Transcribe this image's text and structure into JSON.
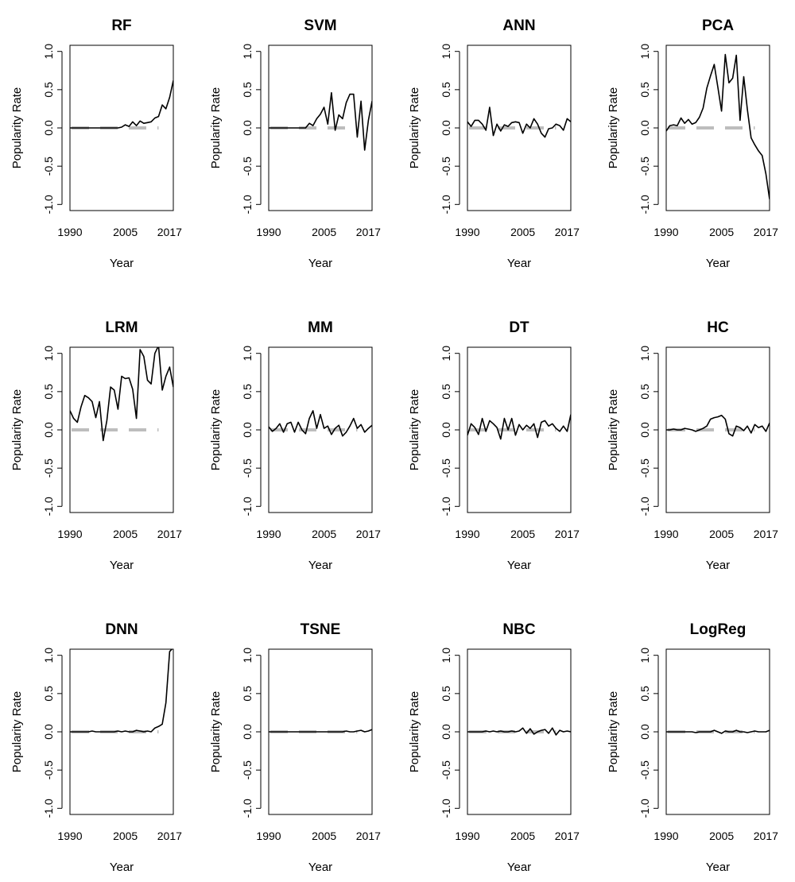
{
  "chart_data": [
    {
      "type": "line",
      "title": "RF",
      "xlabel": "Year",
      "ylabel": "Popularity Rate",
      "xlim": [
        1990,
        2018
      ],
      "ylim": [
        -1.0,
        1.0
      ],
      "x_ticks": [
        1990,
        2005,
        2017
      ],
      "y_ticks": [
        -1.0,
        -0.5,
        0.0,
        0.5,
        1.0
      ],
      "baseline": 0,
      "x": [
        1990,
        1991,
        1992,
        1993,
        1994,
        1995,
        1996,
        1997,
        1998,
        1999,
        2000,
        2001,
        2002,
        2003,
        2004,
        2005,
        2006,
        2007,
        2008,
        2009,
        2010,
        2011,
        2012,
        2013,
        2014,
        2015,
        2016,
        2017,
        2018
      ],
      "values": [
        0,
        0,
        0,
        0,
        0,
        0,
        0,
        0,
        0,
        0,
        0,
        0,
        0,
        0,
        0.01,
        0.04,
        0.02,
        0.08,
        0.03,
        0.09,
        0.06,
        0.07,
        0.08,
        0.13,
        0.15,
        0.3,
        0.25,
        0.4,
        0.62
      ]
    },
    {
      "type": "line",
      "title": "SVM",
      "xlabel": "Year",
      "ylabel": "Popularity Rate",
      "xlim": [
        1990,
        2018
      ],
      "ylim": [
        -1.0,
        1.0
      ],
      "x_ticks": [
        1990,
        2005,
        2017
      ],
      "y_ticks": [
        -1.0,
        -0.5,
        0.0,
        0.5,
        1.0
      ],
      "baseline": 0,
      "x": [
        1990,
        1991,
        1992,
        1993,
        1994,
        1995,
        1996,
        1997,
        1998,
        1999,
        2000,
        2001,
        2002,
        2003,
        2004,
        2005,
        2006,
        2007,
        2008,
        2009,
        2010,
        2011,
        2012,
        2013,
        2014,
        2015,
        2016,
        2017,
        2018
      ],
      "values": [
        0,
        0,
        0,
        0,
        0,
        0,
        0,
        0,
        0,
        0,
        0,
        0.06,
        0.03,
        0.12,
        0.18,
        0.27,
        0.05,
        0.46,
        -0.03,
        0.17,
        0.12,
        0.33,
        0.44,
        0.44,
        -0.12,
        0.35,
        -0.29,
        0.1,
        0.35
      ]
    },
    {
      "type": "line",
      "title": "ANN",
      "xlabel": "Year",
      "ylabel": "Popularity Rate",
      "xlim": [
        1990,
        2018
      ],
      "ylim": [
        -1.0,
        1.0
      ],
      "x_ticks": [
        1990,
        2005,
        2017
      ],
      "y_ticks": [
        -1.0,
        -0.5,
        0.0,
        0.5,
        1.0
      ],
      "baseline": 0,
      "x": [
        1990,
        1991,
        1992,
        1993,
        1994,
        1995,
        1996,
        1997,
        1998,
        1999,
        2000,
        2001,
        2002,
        2003,
        2004,
        2005,
        2006,
        2007,
        2008,
        2009,
        2010,
        2011,
        2012,
        2013,
        2014,
        2015,
        2016,
        2017,
        2018
      ],
      "values": [
        0.08,
        0.02,
        0.1,
        0.1,
        0.05,
        -0.03,
        0.27,
        -0.1,
        0.05,
        -0.04,
        0.04,
        0.02,
        0.07,
        0.08,
        0.07,
        -0.07,
        0.05,
        0,
        0.12,
        0.05,
        -0.07,
        -0.12,
        -0.01,
        0,
        0.05,
        0.03,
        -0.03,
        0.12,
        0.08
      ]
    },
    {
      "type": "line",
      "title": "PCA",
      "xlabel": "Year",
      "ylabel": "Popularity Rate",
      "xlim": [
        1990,
        2018
      ],
      "ylim": [
        -1.0,
        1.0
      ],
      "x_ticks": [
        1990,
        2005,
        2017
      ],
      "y_ticks": [
        -1.0,
        -0.5,
        0.0,
        0.5,
        1.0
      ],
      "baseline": 0,
      "x": [
        1990,
        1991,
        1992,
        1993,
        1994,
        1995,
        1996,
        1997,
        1998,
        1999,
        2000,
        2001,
        2002,
        2003,
        2004,
        2005,
        2006,
        2007,
        2008,
        2009,
        2010,
        2011,
        2012,
        2013,
        2014,
        2015,
        2016,
        2017,
        2018
      ],
      "values": [
        -0.04,
        0.03,
        0.04,
        0.03,
        0.13,
        0.06,
        0.11,
        0.05,
        0.07,
        0.14,
        0.26,
        0.52,
        0.68,
        0.83,
        0.53,
        0.22,
        0.96,
        0.59,
        0.65,
        0.95,
        0.1,
        0.67,
        0.24,
        -0.13,
        -0.22,
        -0.3,
        -0.36,
        -0.6,
        -0.93
      ]
    },
    {
      "type": "line",
      "title": "LRM",
      "xlabel": "Year",
      "ylabel": "Popularity Rate",
      "xlim": [
        1990,
        2018
      ],
      "ylim": [
        -1.0,
        1.0
      ],
      "x_ticks": [
        1990,
        2005,
        2017
      ],
      "y_ticks": [
        -1.0,
        -0.5,
        0.0,
        0.5,
        1.0
      ],
      "baseline": 0,
      "x": [
        1990,
        1991,
        1992,
        1993,
        1994,
        1995,
        1996,
        1997,
        1998,
        1999,
        2000,
        2001,
        2002,
        2003,
        2004,
        2005,
        2006,
        2007,
        2008,
        2009,
        2010,
        2011,
        2012,
        2013,
        2014,
        2015,
        2016,
        2017,
        2018
      ],
      "values": [
        0.25,
        0.15,
        0.1,
        0.3,
        0.45,
        0.42,
        0.37,
        0.16,
        0.37,
        -0.14,
        0.12,
        0.56,
        0.52,
        0.27,
        0.7,
        0.67,
        0.68,
        0.53,
        0.15,
        1.05,
        0.96,
        0.65,
        0.6,
        1.0,
        1.1,
        0.52,
        0.7,
        0.82,
        0.56
      ]
    },
    {
      "type": "line",
      "title": "MM",
      "xlabel": "Year",
      "ylabel": "Popularity Rate",
      "xlim": [
        1990,
        2018
      ],
      "ylim": [
        -1.0,
        1.0
      ],
      "x_ticks": [
        1990,
        2005,
        2017
      ],
      "y_ticks": [
        -1.0,
        -0.5,
        0.0,
        0.5,
        1.0
      ],
      "baseline": 0,
      "x": [
        1990,
        1991,
        1992,
        1993,
        1994,
        1995,
        1996,
        1997,
        1998,
        1999,
        2000,
        2001,
        2002,
        2003,
        2004,
        2005,
        2006,
        2007,
        2008,
        2009,
        2010,
        2011,
        2012,
        2013,
        2014,
        2015,
        2016,
        2017,
        2018
      ],
      "values": [
        0.04,
        -0.02,
        0.02,
        0.08,
        -0.03,
        0.08,
        0.1,
        -0.03,
        0.1,
        0,
        -0.05,
        0.15,
        0.25,
        0.02,
        0.2,
        0.02,
        0.05,
        -0.06,
        0.02,
        0.06,
        -0.08,
        -0.03,
        0.05,
        0.15,
        0.02,
        0.07,
        -0.03,
        0.02,
        0.06
      ]
    },
    {
      "type": "line",
      "title": "DT",
      "xlabel": "Year",
      "ylabel": "Popularity Rate",
      "xlim": [
        1990,
        2018
      ],
      "ylim": [
        -1.0,
        1.0
      ],
      "x_ticks": [
        1990,
        2005,
        2017
      ],
      "y_ticks": [
        -1.0,
        -0.5,
        0.0,
        0.5,
        1.0
      ],
      "baseline": 0,
      "x": [
        1990,
        1991,
        1992,
        1993,
        1994,
        1995,
        1996,
        1997,
        1998,
        1999,
        2000,
        2001,
        2002,
        2003,
        2004,
        2005,
        2006,
        2007,
        2008,
        2009,
        2010,
        2011,
        2012,
        2013,
        2014,
        2015,
        2016,
        2017,
        2018
      ],
      "values": [
        -0.07,
        0.08,
        0.03,
        -0.06,
        0.15,
        -0.02,
        0.12,
        0.08,
        0.03,
        -0.12,
        0.15,
        0,
        0.15,
        -0.07,
        0.07,
        0,
        0.06,
        0.02,
        0.08,
        -0.1,
        0.1,
        0.12,
        0.05,
        0.08,
        0.02,
        -0.02,
        0.05,
        -0.02,
        0.2
      ]
    },
    {
      "type": "line",
      "title": "HC",
      "xlabel": "Year",
      "ylabel": "Popularity Rate",
      "xlim": [
        1990,
        2018
      ],
      "ylim": [
        -1.0,
        1.0
      ],
      "x_ticks": [
        1990,
        2005,
        2017
      ],
      "y_ticks": [
        -1.0,
        -0.5,
        0.0,
        0.5,
        1.0
      ],
      "baseline": 0,
      "x": [
        1990,
        1991,
        1992,
        1993,
        1994,
        1995,
        1996,
        1997,
        1998,
        1999,
        2000,
        2001,
        2002,
        2003,
        2004,
        2005,
        2006,
        2007,
        2008,
        2009,
        2010,
        2011,
        2012,
        2013,
        2014,
        2015,
        2016,
        2017,
        2018
      ],
      "values": [
        0,
        0,
        0.01,
        0,
        0,
        0.02,
        0.01,
        0,
        -0.02,
        0,
        0.02,
        0.05,
        0.14,
        0.16,
        0.17,
        0.19,
        0.14,
        -0.05,
        -0.08,
        0.05,
        0.03,
        -0.01,
        0.05,
        -0.04,
        0.07,
        0.03,
        0.05,
        -0.02,
        0.09
      ]
    },
    {
      "type": "line",
      "title": "DNN",
      "xlabel": "Year",
      "ylabel": "Popularity Rate",
      "xlim": [
        1990,
        2018
      ],
      "ylim": [
        -1.0,
        1.0
      ],
      "x_ticks": [
        1990,
        2005,
        2017
      ],
      "y_ticks": [
        -1.0,
        -0.5,
        0.0,
        0.5,
        1.0
      ],
      "baseline": 0,
      "x": [
        1990,
        1991,
        1992,
        1993,
        1994,
        1995,
        1996,
        1997,
        1998,
        1999,
        2000,
        2001,
        2002,
        2003,
        2004,
        2005,
        2006,
        2007,
        2008,
        2009,
        2010,
        2011,
        2012,
        2013,
        2014,
        2015,
        2016,
        2017,
        2018
      ],
      "values": [
        0,
        0,
        0,
        0,
        0,
        0,
        0.01,
        0,
        0,
        0,
        0,
        0,
        0,
        0.01,
        0,
        0.01,
        0,
        0,
        0.02,
        0.01,
        0,
        0.01,
        0,
        0.05,
        0.07,
        0.1,
        0.38,
        1.05,
        1.1
      ]
    },
    {
      "type": "line",
      "title": "TSNE",
      "xlabel": "Year",
      "ylabel": "Popularity Rate",
      "xlim": [
        1990,
        2018
      ],
      "ylim": [
        -1.0,
        1.0
      ],
      "x_ticks": [
        1990,
        2005,
        2017
      ],
      "y_ticks": [
        -1.0,
        -0.5,
        0.0,
        0.5,
        1.0
      ],
      "baseline": 0,
      "x": [
        1990,
        1991,
        1992,
        1993,
        1994,
        1995,
        1996,
        1997,
        1998,
        1999,
        2000,
        2001,
        2002,
        2003,
        2004,
        2005,
        2006,
        2007,
        2008,
        2009,
        2010,
        2011,
        2012,
        2013,
        2014,
        2015,
        2016,
        2017,
        2018
      ],
      "values": [
        0,
        0,
        0,
        0,
        0,
        0,
        0,
        0,
        0,
        0,
        0,
        0,
        0,
        0,
        0,
        0,
        0,
        0,
        0,
        0,
        0,
        0.01,
        0,
        0,
        0.01,
        0.02,
        0,
        0.01,
        0.03
      ]
    },
    {
      "type": "line",
      "title": "NBC",
      "xlabel": "Year",
      "ylabel": "Popularity Rate",
      "xlim": [
        1990,
        2018
      ],
      "ylim": [
        -1.0,
        1.0
      ],
      "x_ticks": [
        1990,
        2005,
        2017
      ],
      "y_ticks": [
        -1.0,
        -0.5,
        0.0,
        0.5,
        1.0
      ],
      "baseline": 0,
      "x": [
        1990,
        1991,
        1992,
        1993,
        1994,
        1995,
        1996,
        1997,
        1998,
        1999,
        2000,
        2001,
        2002,
        2003,
        2004,
        2005,
        2006,
        2007,
        2008,
        2009,
        2010,
        2011,
        2012,
        2013,
        2014,
        2015,
        2016,
        2017,
        2018
      ],
      "values": [
        0,
        0,
        0,
        0,
        0,
        0.01,
        0,
        0.01,
        0,
        0.01,
        0,
        0,
        0.01,
        0,
        0.01,
        0.05,
        -0.02,
        0.04,
        -0.03,
        0,
        0.02,
        0.03,
        -0.02,
        0.05,
        -0.04,
        0.02,
        0,
        0.01,
        0
      ]
    },
    {
      "type": "line",
      "title": "LogReg",
      "xlabel": "Year",
      "ylabel": "Popularity Rate",
      "xlim": [
        1990,
        2018
      ],
      "ylim": [
        -1.0,
        1.0
      ],
      "x_ticks": [
        1990,
        2005,
        2017
      ],
      "y_ticks": [
        -1.0,
        -0.5,
        0.0,
        0.5,
        1.0
      ],
      "baseline": 0,
      "x": [
        1990,
        1991,
        1992,
        1993,
        1994,
        1995,
        1996,
        1997,
        1998,
        1999,
        2000,
        2001,
        2002,
        2003,
        2004,
        2005,
        2006,
        2007,
        2008,
        2009,
        2010,
        2011,
        2012,
        2013,
        2014,
        2015,
        2016,
        2017,
        2018
      ],
      "values": [
        0,
        0,
        0,
        0,
        0,
        0,
        0,
        0,
        -0.01,
        0,
        0,
        0,
        0,
        0.02,
        0,
        -0.02,
        0.01,
        0,
        0,
        0.02,
        0,
        0,
        -0.01,
        0,
        0.01,
        0,
        0,
        0,
        0.02
      ]
    }
  ]
}
